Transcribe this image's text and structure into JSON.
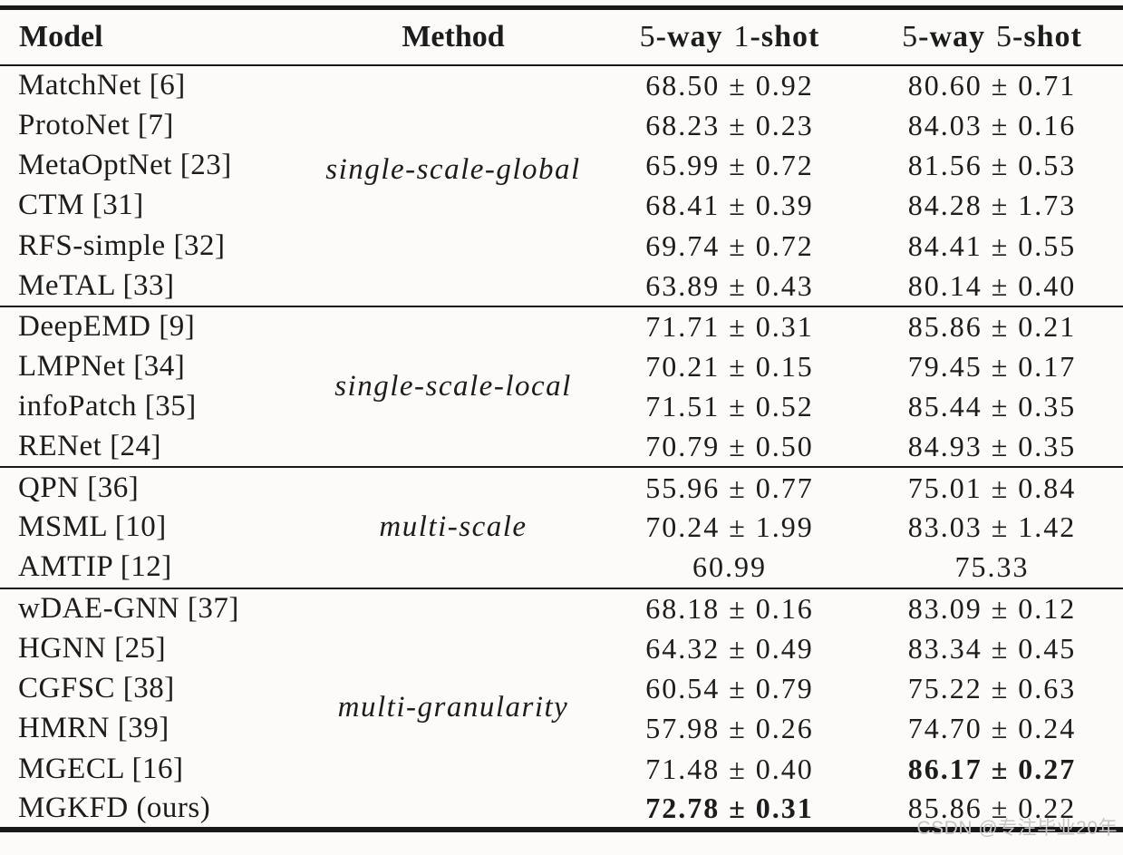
{
  "table": {
    "columns": {
      "model": "Model",
      "method": "Method",
      "one_shot": {
        "n1": "5",
        "w1": "-way",
        "n2": "1",
        "w2": "-shot"
      },
      "five_shot": {
        "n1": "5",
        "w1": "-way",
        "n2": "5",
        "w2": "-shot"
      }
    },
    "groups": [
      {
        "method": "single-scale-global",
        "rows": [
          {
            "model": "MatchNet [6]",
            "one_shot": "68.50 ± 0.92",
            "five_shot": "80.60 ± 0.71"
          },
          {
            "model": "ProtoNet [7]",
            "one_shot": "68.23 ± 0.23",
            "five_shot": "84.03 ± 0.16"
          },
          {
            "model": "MetaOptNet [23]",
            "one_shot": "65.99 ± 0.72",
            "five_shot": "81.56 ± 0.53"
          },
          {
            "model": "CTM [31]",
            "one_shot": "68.41 ± 0.39",
            "five_shot": "84.28 ± 1.73"
          },
          {
            "model": "RFS-simple [32]",
            "one_shot": "69.74 ± 0.72",
            "five_shot": "84.41 ± 0.55"
          },
          {
            "model": "MeTAL [33]",
            "one_shot": "63.89 ± 0.43",
            "five_shot": "80.14 ± 0.40"
          }
        ]
      },
      {
        "method": "single-scale-local",
        "rows": [
          {
            "model": "DeepEMD [9]",
            "one_shot": "71.71 ± 0.31",
            "five_shot": "85.86 ± 0.21"
          },
          {
            "model": "LMPNet [34]",
            "one_shot": "70.21 ± 0.15",
            "five_shot": "79.45 ± 0.17"
          },
          {
            "model": "infoPatch [35]",
            "one_shot": "71.51 ± 0.52",
            "five_shot": "85.44 ± 0.35"
          },
          {
            "model": "RENet [24]",
            "one_shot": "70.79 ± 0.50",
            "five_shot": "84.93 ± 0.35"
          }
        ]
      },
      {
        "method": "multi-scale",
        "rows": [
          {
            "model": "QPN [36]",
            "one_shot": "55.96 ± 0.77",
            "five_shot": "75.01 ± 0.84"
          },
          {
            "model": "MSML [10]",
            "one_shot": "70.24 ± 1.99",
            "five_shot": "83.03 ± 1.42"
          },
          {
            "model": "AMTIP [12]",
            "one_shot": "60.99",
            "five_shot": "75.33"
          }
        ]
      },
      {
        "method": "multi-granularity",
        "rows": [
          {
            "model": "wDAE-GNN [37]",
            "one_shot": "68.18 ± 0.16",
            "five_shot": "83.09 ± 0.12"
          },
          {
            "model": "HGNN [25]",
            "one_shot": "64.32 ± 0.49",
            "five_shot": "83.34 ± 0.45"
          },
          {
            "model": "CGFSC [38]",
            "one_shot": "60.54 ± 0.79",
            "five_shot": "75.22 ± 0.63"
          },
          {
            "model": "HMRN [39]",
            "one_shot": "57.98 ± 0.26",
            "five_shot": "74.70 ± 0.24"
          },
          {
            "model": "MGECL [16]",
            "one_shot": "71.48 ± 0.40",
            "five_shot": "86.17 ± 0.27",
            "five_shot_bold": true
          },
          {
            "model": "MGKFD (ours)",
            "one_shot": "72.78 ± 0.31",
            "one_shot_bold": true,
            "five_shot": "85.86 ± 0.22"
          }
        ]
      }
    ]
  },
  "watermark": "CSDN @专注毕业20年",
  "colors": {
    "text": "#1c1c1c",
    "rule": "#181818",
    "background": "#fcfbf9",
    "watermark_gray": "#c8c4c4"
  }
}
